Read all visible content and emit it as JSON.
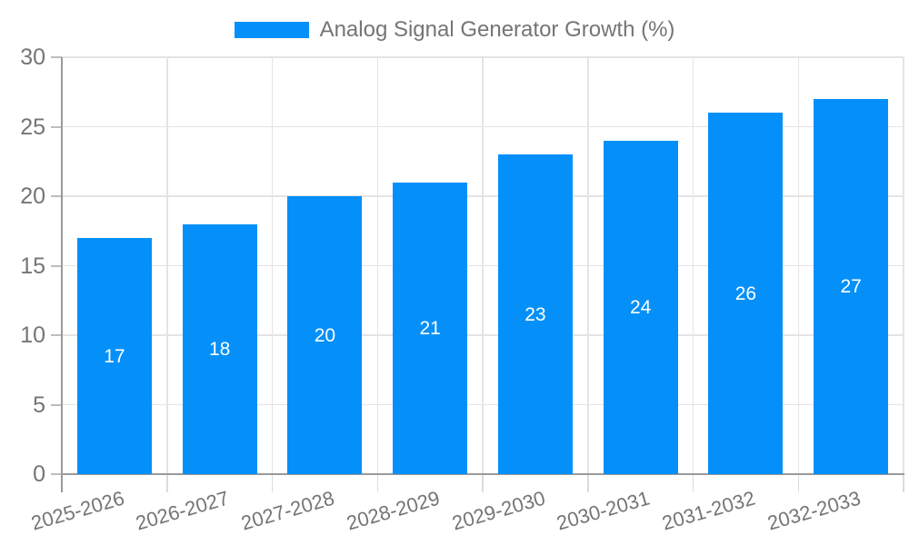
{
  "legend": {
    "label": "Analog Signal Generator Growth (%)"
  },
  "colors": {
    "bar": "#0590f9",
    "axis_line": "#9a9a9a",
    "gridline": "#e4e4e4",
    "y_tick": "#bdbdbd",
    "x_tick": "#dcdcdc",
    "axis_label": "#757575",
    "value_label": "#ffffff",
    "background": "#ffffff"
  },
  "chart_data": {
    "type": "bar",
    "title": "",
    "series_name": "Analog Signal Generator Growth (%)",
    "categories": [
      "2025-2026",
      "2026-2027",
      "2027-2028",
      "2028-2029",
      "2029-2030",
      "2030-2031",
      "2031-2032",
      "2032-2033"
    ],
    "values": [
      17,
      18,
      20,
      21,
      23,
      24,
      26,
      27
    ],
    "xlabel": "",
    "ylabel": "",
    "ylim": [
      0,
      30
    ],
    "yticks": [
      0,
      5,
      10,
      15,
      20,
      25,
      30
    ],
    "grid": "both",
    "legend_position": "top",
    "bar_labels": "inside-center",
    "x_label_rotation_deg": -16
  }
}
